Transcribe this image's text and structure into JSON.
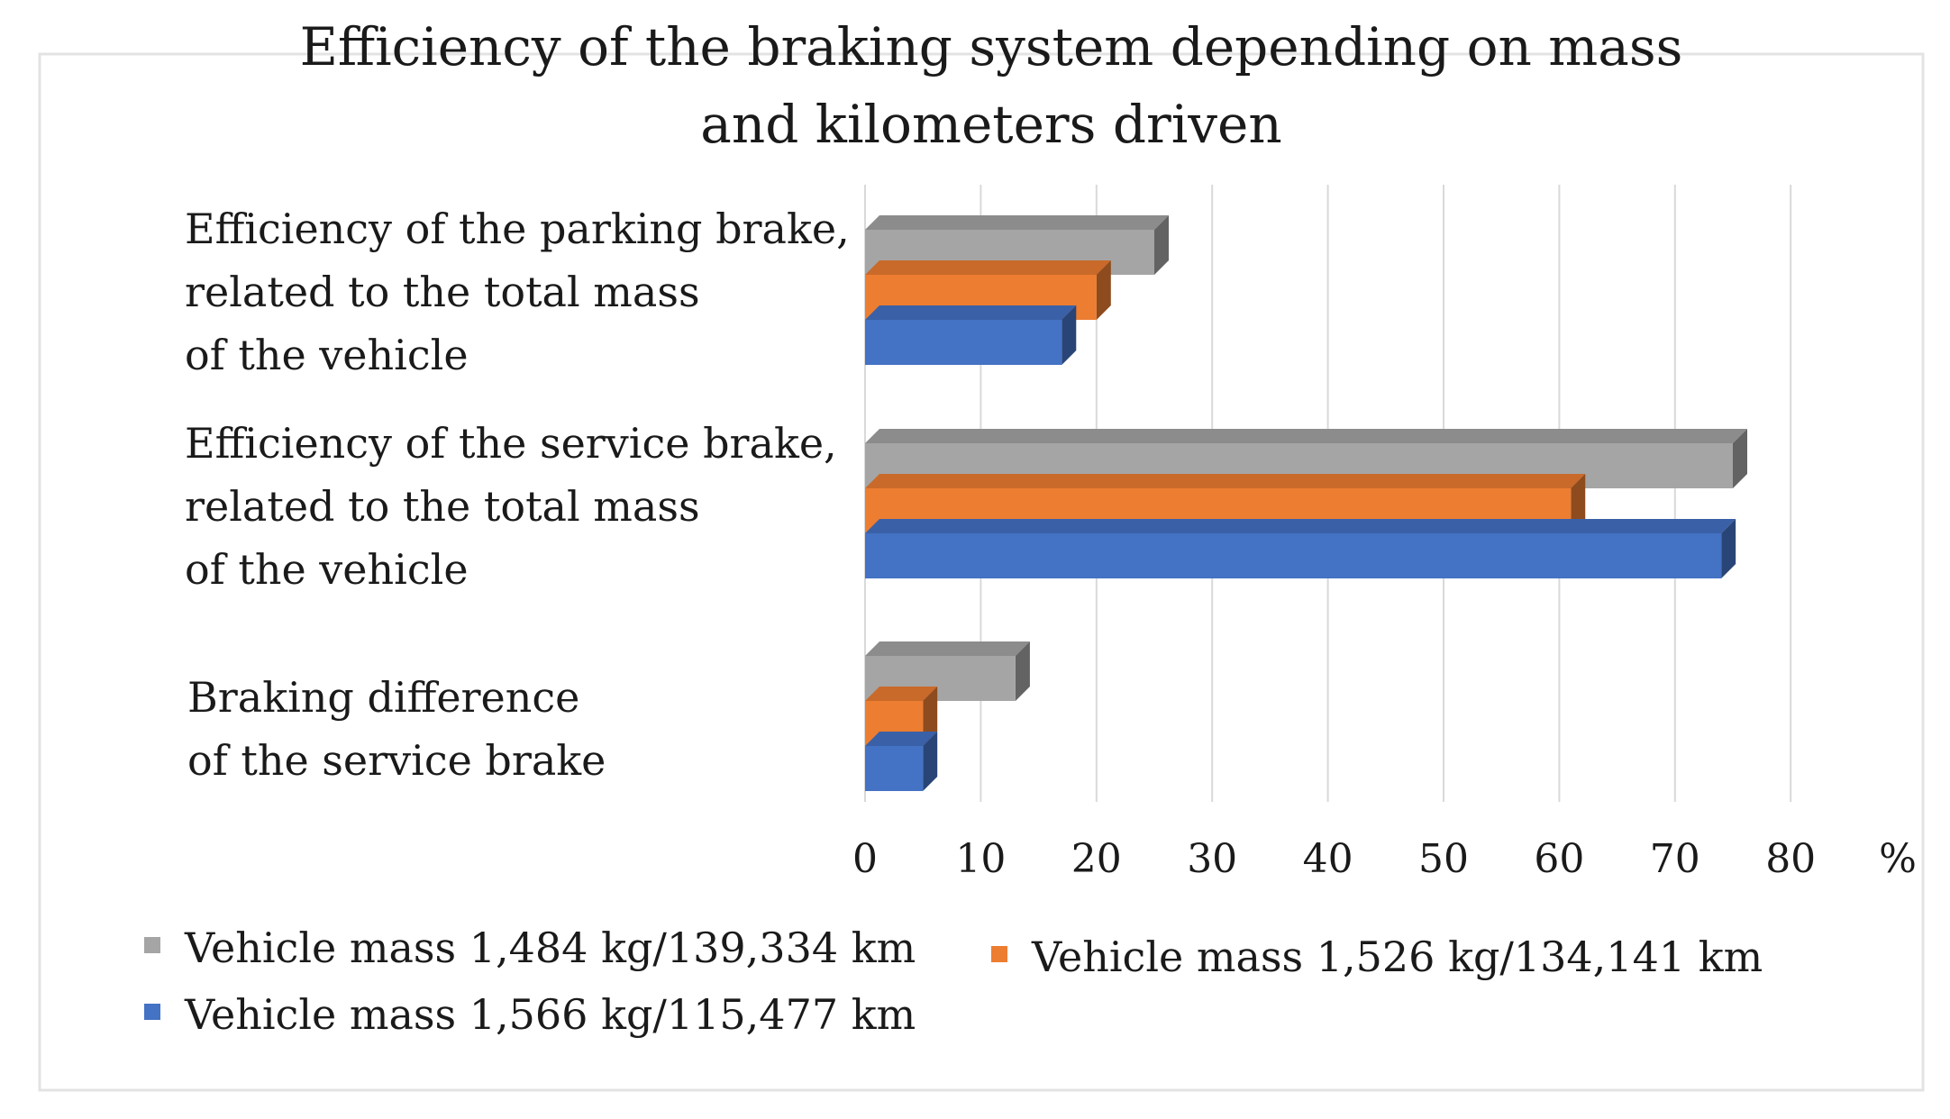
{
  "chart_data": {
    "type": "bar",
    "orientation": "horizontal",
    "title_lines": [
      "Efficiency of the braking system depending on mass",
      "and kilometers driven"
    ],
    "categories": [
      {
        "name": "Braking difference of the service brake",
        "label_lines": [
          "Braking difference",
          "of the service brake"
        ]
      },
      {
        "name": "Efficiency of the service brake, related to the total mass of the vehicle",
        "label_lines": [
          "Efficiency of the service brake,",
          "related to the total mass",
          "of the vehicle"
        ]
      },
      {
        "name": "Efficiency of the parking brake, related to the total mass of the vehicle",
        "label_lines": [
          "Efficiency of the parking brake,",
          "related to the total mass",
          "of the vehicle"
        ]
      }
    ],
    "series": [
      {
        "name": "Vehicle mass 1,566 kg/115,477 km",
        "color": "#4472C4",
        "values": [
          5,
          74,
          17
        ]
      },
      {
        "name": "Vehicle mass 1,526 kg/134,141 km",
        "color": "#ED7D31",
        "values": [
          5,
          61,
          20
        ]
      },
      {
        "name": "Vehicle mass 1,484 kg/139,334 km",
        "color": "#A5A5A5",
        "values": [
          13,
          75,
          25
        ]
      }
    ],
    "xlim": [
      0,
      80
    ],
    "x_ticks": [
      "0",
      "10",
      "20",
      "30",
      "40",
      "50",
      "60",
      "70",
      "80"
    ],
    "x_unit": "%",
    "grid": true,
    "legend_position": "bottom"
  }
}
